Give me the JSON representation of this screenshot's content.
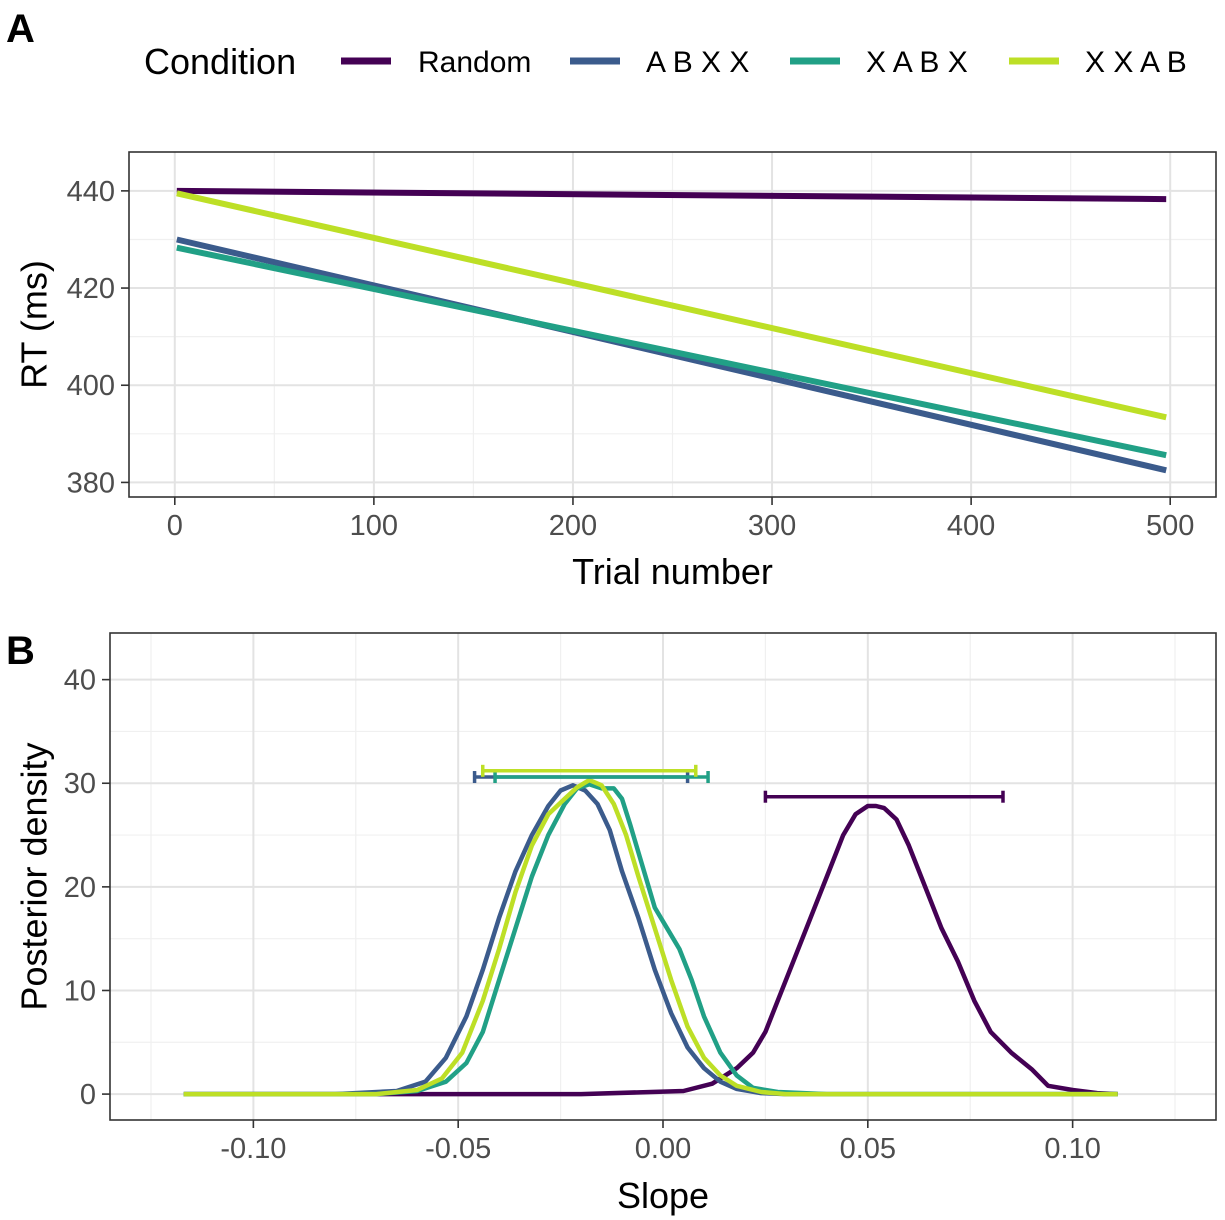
{
  "panel_letters": [
    "A",
    "B"
  ],
  "legend": {
    "title": "Condition",
    "entries": [
      {
        "label": "Random",
        "color": "#440154"
      },
      {
        "label": "A B X X",
        "color": "#3B5B8C"
      },
      {
        "label": "X A B X",
        "color": "#21A086"
      },
      {
        "label": "X X A B",
        "color": "#BDDF26"
      }
    ]
  },
  "chart_data": [
    {
      "type": "line",
      "panel": "A",
      "xlabel": "Trial number",
      "ylabel": "RT (ms)",
      "xlim": [
        -23,
        523
      ],
      "ylim": [
        377,
        448
      ],
      "xticks": [
        0,
        100,
        200,
        300,
        400,
        500
      ],
      "yticks": [
        380,
        400,
        420,
        440
      ],
      "grid": true,
      "series": [
        {
          "name": "Random",
          "color": "#440154",
          "x": [
            1,
            498
          ],
          "y": [
            440.0,
            438.3
          ]
        },
        {
          "name": "A B X X",
          "color": "#3B5B8C",
          "x": [
            1,
            498
          ],
          "y": [
            430.0,
            382.5
          ]
        },
        {
          "name": "X A B X",
          "color": "#21A086",
          "x": [
            1,
            498
          ],
          "y": [
            428.3,
            385.6
          ]
        },
        {
          "name": "X X A B",
          "color": "#BDDF26",
          "x": [
            1,
            498
          ],
          "y": [
            439.5,
            393.4
          ]
        }
      ]
    },
    {
      "type": "line",
      "panel": "B",
      "xlabel": "Slope",
      "ylabel": "Posterior density",
      "xlim": [
        -0.135,
        0.135
      ],
      "ylim": [
        -2.5,
        44.5
      ],
      "xticks": [
        -0.1,
        -0.05,
        0.0,
        0.05,
        0.1
      ],
      "xtick_labels": [
        "-0.10",
        "-0.05",
        "0.00",
        "0.05",
        "0.10"
      ],
      "yticks": [
        0,
        10,
        20,
        30,
        40
      ],
      "grid": true,
      "series": [
        {
          "name": "Random",
          "color": "#440154",
          "x": [
            -0.117,
            -0.02,
            0.005,
            0.012,
            0.018,
            0.022,
            0.025,
            0.028,
            0.032,
            0.036,
            0.04,
            0.044,
            0.047,
            0.05,
            0.052,
            0.054,
            0.057,
            0.06,
            0.064,
            0.068,
            0.072,
            0.076,
            0.08,
            0.085,
            0.09,
            0.094,
            0.1,
            0.106,
            0.111
          ],
          "y": [
            0,
            0,
            0.3,
            1,
            2.5,
            4,
            6,
            9,
            13,
            17,
            21,
            25,
            27,
            27.8,
            27.8,
            27.6,
            26.5,
            24,
            20,
            16,
            12.8,
            9,
            6,
            4,
            2.4,
            0.8,
            0.4,
            0.1,
            0
          ]
        },
        {
          "name": "A B X X",
          "color": "#3B5B8C",
          "x": [
            -0.117,
            -0.08,
            -0.065,
            -0.058,
            -0.053,
            -0.048,
            -0.044,
            -0.04,
            -0.036,
            -0.032,
            -0.028,
            -0.025,
            -0.022,
            -0.019,
            -0.016,
            -0.013,
            -0.01,
            -0.006,
            -0.002,
            0.002,
            0.006,
            0.01,
            0.014,
            0.018,
            0.024,
            0.03,
            0.04,
            0.111
          ],
          "y": [
            0,
            0,
            0.3,
            1.2,
            3.5,
            7.5,
            12,
            17,
            21.5,
            25,
            27.8,
            29.3,
            29.8,
            29.3,
            28,
            25.5,
            21.5,
            17,
            12,
            7.8,
            4.5,
            2.5,
            1.2,
            0.5,
            0.1,
            0,
            0,
            0
          ]
        },
        {
          "name": "X A B X",
          "color": "#21A086",
          "x": [
            -0.117,
            -0.07,
            -0.06,
            -0.053,
            -0.048,
            -0.044,
            -0.04,
            -0.036,
            -0.032,
            -0.028,
            -0.024,
            -0.021,
            -0.018,
            -0.015,
            -0.012,
            -0.01,
            -0.008,
            -0.005,
            -0.002,
            0.001,
            0.004,
            0.007,
            0.01,
            0.014,
            0.018,
            0.022,
            0.028,
            0.04,
            0.111
          ],
          "y": [
            0,
            0,
            0.3,
            1.2,
            3,
            6,
            11,
            16,
            21,
            25,
            28,
            29.5,
            29.9,
            29.5,
            29.5,
            28.5,
            26,
            22,
            18,
            16,
            14,
            11,
            7.5,
            4,
            1.8,
            0.6,
            0.2,
            0,
            0
          ]
        },
        {
          "name": "X X A B",
          "color": "#BDDF26",
          "x": [
            -0.117,
            -0.07,
            -0.06,
            -0.054,
            -0.049,
            -0.044,
            -0.04,
            -0.036,
            -0.032,
            -0.028,
            -0.024,
            -0.021,
            -0.018,
            -0.015,
            -0.012,
            -0.009,
            -0.006,
            -0.002,
            0.002,
            0.006,
            0.01,
            0.014,
            0.018,
            0.024,
            0.03,
            0.04,
            0.111
          ],
          "y": [
            0,
            0,
            0.4,
            1.5,
            4,
            9,
            14,
            19.5,
            24,
            27,
            28.5,
            29.6,
            30.3,
            29.8,
            28,
            25,
            21,
            16,
            11,
            6.5,
            3.5,
            1.8,
            0.8,
            0.2,
            0,
            0,
            0
          ]
        }
      ],
      "intervals": [
        {
          "name": "Random",
          "color": "#440154",
          "lo": 0.025,
          "hi": 0.083,
          "y": 28.7
        },
        {
          "name": "A B X X",
          "color": "#3B5B8C",
          "lo": -0.046,
          "hi": 0.006,
          "y": 30.6
        },
        {
          "name": "X A B X",
          "color": "#21A086",
          "lo": -0.041,
          "hi": 0.011,
          "y": 30.6
        },
        {
          "name": "X X A B",
          "color": "#BDDF26",
          "lo": -0.044,
          "hi": 0.008,
          "y": 31.2
        }
      ]
    }
  ]
}
